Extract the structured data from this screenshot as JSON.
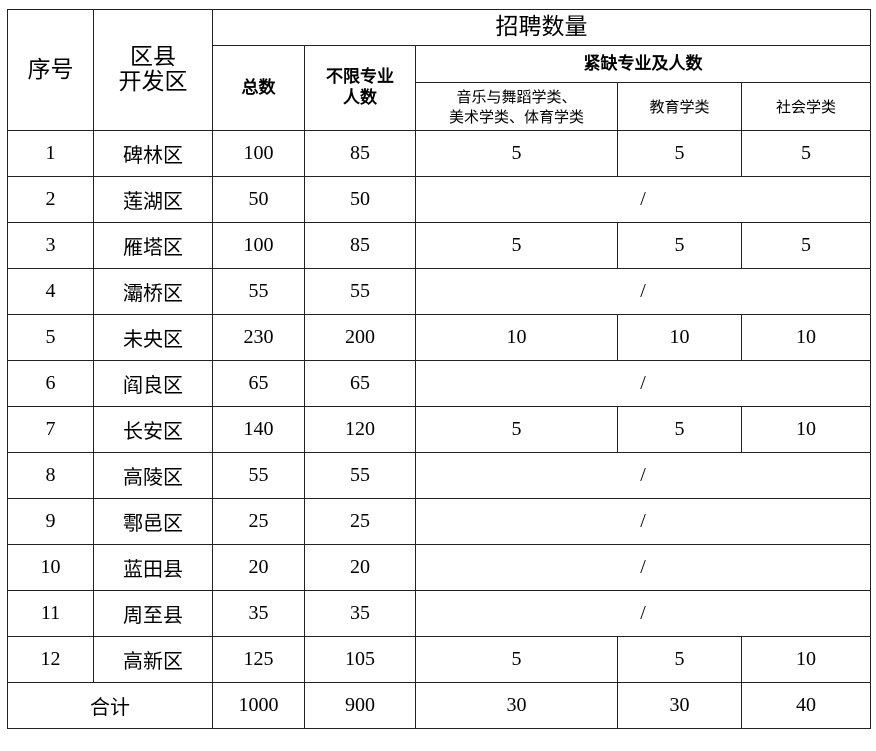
{
  "headers": {
    "seq": "序号",
    "district_line1": "区县",
    "district_line2": "开发区",
    "recruit": "招聘数量",
    "total": "总数",
    "unlimited_line1": "不限专业",
    "unlimited_line2": "人数",
    "shortage": "紧缺专业及人数",
    "music_line1": "音乐与舞蹈学类、",
    "music_line2": "美术学类、体育学类",
    "education": "教育学类",
    "social": "社会学类"
  },
  "rows": [
    {
      "no": "1",
      "district": "碑林区",
      "total": "100",
      "unlimited": "85",
      "music": "5",
      "education": "5",
      "social": "5"
    },
    {
      "no": "2",
      "district": "莲湖区",
      "total": "50",
      "unlimited": "50",
      "merged": "/"
    },
    {
      "no": "3",
      "district": "雁塔区",
      "total": "100",
      "unlimited": "85",
      "music": "5",
      "education": "5",
      "social": "5"
    },
    {
      "no": "4",
      "district": "灞桥区",
      "total": "55",
      "unlimited": "55",
      "merged": "/"
    },
    {
      "no": "5",
      "district": "未央区",
      "total": "230",
      "unlimited": "200",
      "music": "10",
      "education": "10",
      "social": "10"
    },
    {
      "no": "6",
      "district": "阎良区",
      "total": "65",
      "unlimited": "65",
      "merged": "/"
    },
    {
      "no": "7",
      "district": "长安区",
      "total": "140",
      "unlimited": "120",
      "music": "5",
      "education": "5",
      "social": "10"
    },
    {
      "no": "8",
      "district": "高陵区",
      "total": "55",
      "unlimited": "55",
      "merged": "/"
    },
    {
      "no": "9",
      "district": "鄠邑区",
      "total": "25",
      "unlimited": "25",
      "merged": "/"
    },
    {
      "no": "10",
      "district": "蓝田县",
      "total": "20",
      "unlimited": "20",
      "merged": "/"
    },
    {
      "no": "11",
      "district": "周至县",
      "total": "35",
      "unlimited": "35",
      "merged": "/"
    },
    {
      "no": "12",
      "district": "高新区",
      "total": "125",
      "unlimited": "105",
      "music": "5",
      "education": "5",
      "social": "10"
    }
  ],
  "totals": {
    "label": "合计",
    "total": "1000",
    "unlimited": "900",
    "music": "30",
    "education": "30",
    "social": "40"
  }
}
